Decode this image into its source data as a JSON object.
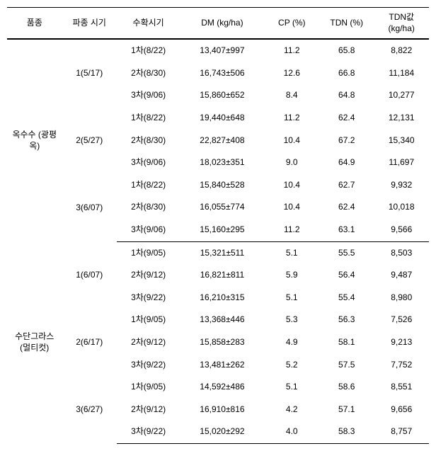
{
  "headers": {
    "variety": "품종",
    "sowing": "파종\n시기",
    "harvest": "수확시기",
    "dm": "DM\n(kg/ha)",
    "cp": "CP\n(%)",
    "tdn": "TDN\n(%)",
    "tdnval": "TDN값\n(kg/ha)"
  },
  "groups": [
    {
      "variety": "옥수수\n(광평옥)",
      "sowings": [
        {
          "label": "1(5/17)",
          "rows": [
            {
              "harvest": "1차(8/22)",
              "dm": "13,407±997",
              "cp": "11.2",
              "tdn": "65.8",
              "tdnval": "8,822"
            },
            {
              "harvest": "2차(8/30)",
              "dm": "16,743±506",
              "cp": "12.6",
              "tdn": "66.8",
              "tdnval": "11,184"
            },
            {
              "harvest": "3차(9/06)",
              "dm": "15,860±652",
              "cp": "8.4",
              "tdn": "64.8",
              "tdnval": "10,277"
            }
          ]
        },
        {
          "label": "2(5/27)",
          "rows": [
            {
              "harvest": "1차(8/22)",
              "dm": "19,440±648",
              "cp": "11.2",
              "tdn": "62.4",
              "tdnval": "12,131"
            },
            {
              "harvest": "2차(8/30)",
              "dm": "22,827±408",
              "cp": "10.4",
              "tdn": "67.2",
              "tdnval": "15,340"
            },
            {
              "harvest": "3차(9/06)",
              "dm": "18,023±351",
              "cp": "9.0",
              "tdn": "64.9",
              "tdnval": "11,697"
            }
          ]
        },
        {
          "label": "3(6/07)",
          "rows": [
            {
              "harvest": "1차(8/22)",
              "dm": "15,840±528",
              "cp": "10.4",
              "tdn": "62.7",
              "tdnval": "9,932"
            },
            {
              "harvest": "2차(8/30)",
              "dm": "16,055±774",
              "cp": "10.4",
              "tdn": "62.4",
              "tdnval": "10,018"
            },
            {
              "harvest": "3차(9/06)",
              "dm": "15,160±295",
              "cp": "11.2",
              "tdn": "63.1",
              "tdnval": "9,566"
            }
          ]
        }
      ]
    },
    {
      "variety": "수단그라스\n(멀티컷)",
      "sowings": [
        {
          "label": "1(6/07)",
          "rows": [
            {
              "harvest": "1차(9/05)",
              "dm": "15,321±511",
              "cp": "5.1",
              "tdn": "55.5",
              "tdnval": "8,503"
            },
            {
              "harvest": "2차(9/12)",
              "dm": "16,821±811",
              "cp": "5.9",
              "tdn": "56.4",
              "tdnval": "9,487"
            },
            {
              "harvest": "3차(9/22)",
              "dm": "16,210±315",
              "cp": "5.1",
              "tdn": "55.4",
              "tdnval": "8,980"
            }
          ]
        },
        {
          "label": "2(6/17)",
          "rows": [
            {
              "harvest": "1차(9/05)",
              "dm": "13,368±446",
              "cp": "5.3",
              "tdn": "56.3",
              "tdnval": "7,526"
            },
            {
              "harvest": "2차(9/12)",
              "dm": "15,858±283",
              "cp": "4.9",
              "tdn": "58.1",
              "tdnval": "9,213"
            },
            {
              "harvest": "3차(9/22)",
              "dm": "13,481±262",
              "cp": "5.2",
              "tdn": "57.5",
              "tdnval": "7,752"
            }
          ]
        },
        {
          "label": "3(6/27)",
          "rows": [
            {
              "harvest": "1차(9/05)",
              "dm": "14,592±486",
              "cp": "5.1",
              "tdn": "58.6",
              "tdnval": "8,551"
            },
            {
              "harvest": "2차(9/12)",
              "dm": "16,910±816",
              "cp": "4.2",
              "tdn": "57.1",
              "tdnval": "9,656"
            },
            {
              "harvest": "3차(9/22)",
              "dm": "15,020±292",
              "cp": "4.0",
              "tdn": "58.3",
              "tdnval": "8,757"
            }
          ]
        }
      ]
    }
  ]
}
